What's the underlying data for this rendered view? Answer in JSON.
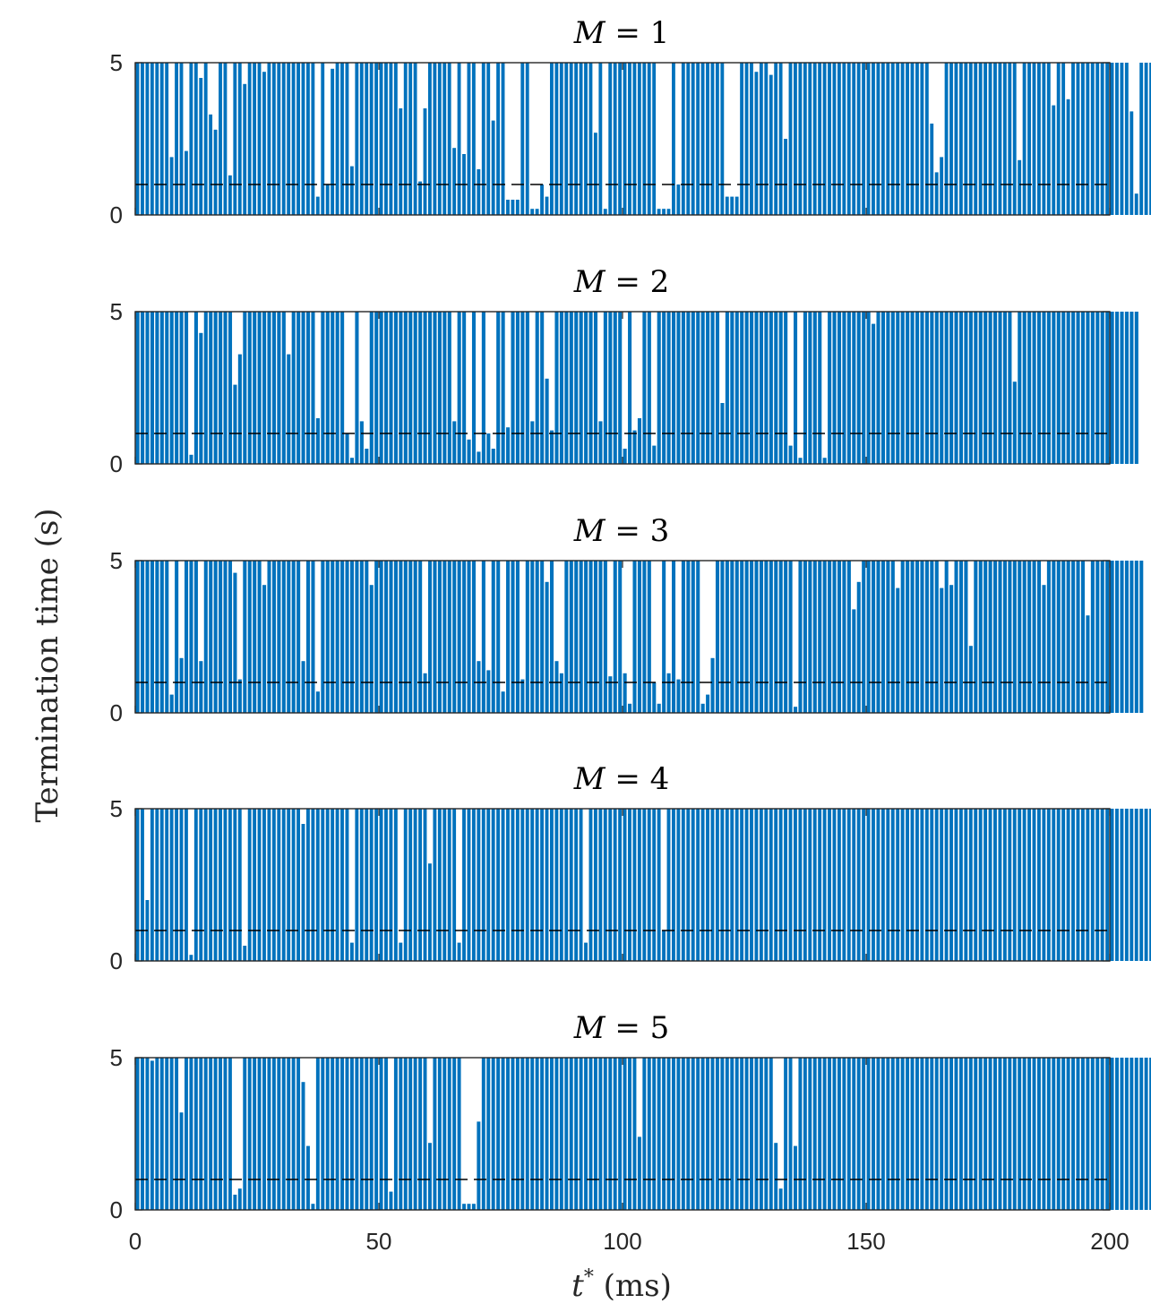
{
  "figure": {
    "ylabel": "Termination time (s)",
    "xlabel_var": "t",
    "xlabel_sup": "*",
    "xlabel_unit": " (ms)",
    "bar_color": "#0072BD",
    "threshold_color": "#000000"
  },
  "chart_data": [
    {
      "type": "bar",
      "title_var": "M",
      "title_value": "= 1",
      "x_start": 0,
      "x_step": 1,
      "xlim": [
        0,
        200
      ],
      "ylim": [
        0,
        5
      ],
      "yticks": [
        0,
        5
      ],
      "xticks": [],
      "threshold": 1,
      "values": [
        5,
        5,
        5,
        5,
        5,
        5,
        5,
        1.9,
        5,
        5,
        2.1,
        5,
        5,
        4.5,
        5,
        3.3,
        2.8,
        5,
        5,
        1.3,
        5,
        5,
        4.3,
        5,
        5,
        5,
        4.7,
        5,
        5,
        5,
        5,
        5,
        5,
        5,
        5,
        5,
        5,
        0.6,
        5,
        1,
        4.8,
        5,
        5,
        5,
        1.6,
        5,
        5,
        5,
        5,
        5,
        5,
        5,
        5,
        5,
        3.5,
        5,
        5,
        5,
        1.1,
        3.5,
        5,
        5,
        5,
        5,
        5,
        2.2,
        5,
        2,
        5,
        5,
        1.5,
        5,
        5,
        3.1,
        5,
        5,
        0.5,
        0.5,
        0.5,
        5,
        5,
        0.2,
        0.2,
        1,
        0.6,
        5,
        5,
        5,
        5,
        5,
        5,
        5,
        5,
        5,
        2.7,
        5,
        0.2,
        5,
        5,
        5,
        5,
        5,
        5,
        5,
        5,
        5,
        5,
        0.2,
        0.2,
        0.2,
        5,
        1,
        5,
        5,
        5,
        5,
        5,
        5,
        5,
        5,
        5,
        0.6,
        0.6,
        0.6,
        5,
        5,
        5,
        4.7,
        5,
        5,
        4.6,
        5,
        5,
        2.5,
        5,
        5,
        5,
        5,
        5,
        5,
        5,
        5,
        5,
        5,
        5,
        5,
        5,
        5,
        5,
        5,
        5,
        5,
        5,
        5,
        5,
        5,
        5,
        5,
        5,
        5,
        5,
        5,
        5,
        3,
        1.4,
        1.9,
        5,
        5,
        5,
        5,
        5,
        5,
        5,
        5,
        5,
        5,
        5,
        5,
        5,
        5,
        5,
        1.8,
        5,
        5,
        5,
        5,
        5,
        5,
        3.6,
        5,
        5,
        3.8,
        5,
        5,
        5,
        5,
        5,
        5,
        5,
        5,
        5,
        5,
        5,
        5,
        3.4,
        0.7,
        5,
        5,
        5,
        5,
        5,
        5,
        4.7,
        5,
        5
      ],
      "bar_value_labels": []
    },
    {
      "type": "bar",
      "title_var": "M",
      "title_value": "= 2",
      "x_start": 0,
      "x_step": 1,
      "xlim": [
        0,
        200
      ],
      "ylim": [
        0,
        5
      ],
      "yticks": [
        0,
        5
      ],
      "xticks": [],
      "threshold": 1,
      "values": [
        5,
        5,
        5,
        5,
        5,
        5,
        5,
        5,
        5,
        5,
        5,
        0.3,
        5,
        4.3,
        5,
        5,
        5,
        5,
        5,
        5,
        2.6,
        3.6,
        5,
        5,
        5,
        5,
        5,
        5,
        5,
        5,
        5,
        3.6,
        5,
        5,
        5,
        5,
        5,
        1.5,
        5,
        5,
        5,
        5,
        5,
        1,
        0.2,
        5,
        1.4,
        0.5,
        5,
        5,
        5,
        5,
        5,
        5,
        5,
        5,
        5,
        5,
        5,
        5,
        5,
        5,
        5,
        5,
        5,
        1.4,
        5,
        5,
        0.8,
        5,
        0.4,
        5,
        1,
        0.5,
        5,
        5,
        1.2,
        5,
        5,
        5,
        5,
        1.4,
        5,
        5,
        2.8,
        1.1,
        5,
        5,
        5,
        5,
        5,
        5,
        5,
        5,
        5,
        1.4,
        5,
        5,
        5,
        5,
        0.5,
        5,
        1.1,
        1.5,
        5,
        5,
        0.6,
        5,
        5,
        5,
        5,
        5,
        5,
        5,
        5,
        5,
        5,
        5,
        5,
        5,
        2,
        5,
        5,
        5,
        5,
        5,
        5,
        5,
        5,
        5,
        5,
        5,
        5,
        5,
        0.6,
        5,
        0.2,
        5,
        5,
        5,
        5,
        0.2,
        5,
        5,
        5,
        5,
        5,
        5,
        5,
        5,
        5,
        4.6,
        5,
        5,
        5,
        5,
        5,
        5,
        5,
        5,
        5,
        5,
        5,
        5,
        5,
        5,
        5,
        5,
        5,
        5,
        5,
        5,
        5,
        5,
        5,
        5,
        5,
        5,
        5,
        5,
        2.7,
        5,
        5,
        5,
        5,
        5,
        5,
        5,
        5,
        5,
        5,
        5,
        5,
        5,
        5,
        5,
        5,
        5,
        5,
        5,
        5,
        5,
        5,
        5,
        5,
        5
      ],
      "bar_value_labels": []
    },
    {
      "type": "bar",
      "title_var": "M",
      "title_value": "= 3",
      "x_start": 0,
      "x_step": 1,
      "xlim": [
        0,
        200
      ],
      "ylim": [
        0,
        5
      ],
      "yticks": [
        0,
        5
      ],
      "xticks": [],
      "threshold": 1,
      "values": [
        5,
        5,
        5,
        5,
        5,
        5,
        5,
        0.6,
        5,
        1.8,
        5,
        5,
        5,
        1.7,
        5,
        5,
        5,
        5,
        5,
        5,
        4.6,
        1.1,
        5,
        5,
        5,
        5,
        4.2,
        5,
        5,
        5,
        5,
        5,
        5,
        5,
        1.7,
        5,
        5,
        0.7,
        5,
        5,
        5,
        5,
        5,
        5,
        5,
        5,
        5,
        5,
        4.2,
        5,
        5,
        5,
        5,
        5,
        5,
        5,
        5,
        5,
        5,
        1.3,
        5,
        5,
        5,
        5,
        5,
        5,
        5,
        5,
        5,
        5,
        1.7,
        5,
        1.4,
        5,
        5,
        0.7,
        5,
        5,
        5,
        1.1,
        5,
        5,
        5,
        5,
        4.3,
        5,
        1.7,
        1.3,
        5,
        5,
        5,
        5,
        5,
        5,
        5,
        5,
        5,
        1.2,
        5,
        5,
        1.3,
        0.3,
        5,
        5,
        5,
        5,
        1,
        0.3,
        5,
        1.3,
        5,
        1.1,
        5,
        5,
        5,
        5,
        0.3,
        0.6,
        1.8,
        5,
        5,
        5,
        5,
        5,
        5,
        5,
        5,
        5,
        5,
        5,
        5,
        5,
        5,
        5,
        5,
        0.2,
        5,
        5,
        5,
        5,
        5,
        5,
        5,
        5,
        5,
        5,
        5,
        3.4,
        4.3,
        5,
        5,
        5,
        5,
        5,
        5,
        5,
        4.1,
        5,
        5,
        5,
        5,
        5,
        5,
        5,
        5,
        4.1,
        5,
        4.2,
        5,
        5,
        5,
        2.2,
        5,
        5,
        5,
        5,
        5,
        5,
        5,
        5,
        5,
        5,
        5,
        5,
        5,
        5,
        4.2,
        5,
        5,
        5,
        5,
        5,
        5,
        5,
        5,
        3.2,
        5,
        5,
        5,
        5,
        5,
        5,
        5,
        5,
        5,
        5,
        5
      ],
      "bar_value_labels": []
    },
    {
      "type": "bar",
      "title_var": "M",
      "title_value": "= 4",
      "x_start": 0,
      "x_step": 1,
      "xlim": [
        0,
        200
      ],
      "ylim": [
        0,
        5
      ],
      "yticks": [
        0,
        5
      ],
      "xticks": [],
      "threshold": 1,
      "values": [
        5,
        5,
        2,
        5,
        5,
        5,
        5,
        5,
        5,
        5,
        5,
        0.2,
        5,
        5,
        5,
        5,
        5,
        5,
        5,
        5,
        5,
        5,
        0.5,
        5,
        5,
        5,
        5,
        5,
        5,
        5,
        5,
        5,
        5,
        5,
        4.5,
        5,
        5,
        5,
        5,
        5,
        5,
        5,
        5,
        5,
        0.6,
        5,
        5,
        5,
        5,
        5,
        5,
        5,
        5,
        5,
        0.6,
        5,
        5,
        5,
        5,
        5,
        3.2,
        5,
        5,
        5,
        5,
        5,
        0.6,
        5,
        5,
        5,
        5,
        5,
        5,
        5,
        5,
        5,
        5,
        5,
        5,
        5,
        5,
        5,
        5,
        5,
        5,
        5,
        5,
        5,
        5,
        5,
        5,
        5,
        0.6,
        5,
        5,
        5,
        5,
        5,
        5,
        5,
        5,
        5,
        5,
        5,
        5,
        5,
        5,
        5,
        1,
        5,
        5,
        5,
        5,
        5,
        5,
        5,
        5,
        5,
        5,
        5,
        5,
        5,
        5,
        5,
        5,
        5,
        5,
        5,
        5,
        5,
        5,
        5,
        5,
        5,
        5,
        5,
        5,
        5,
        5,
        5,
        5,
        5,
        5,
        5,
        5,
        5,
        5,
        5,
        5,
        5,
        5,
        5,
        5,
        5,
        5,
        5,
        5,
        5,
        5,
        5,
        5,
        5,
        5,
        5,
        5,
        5,
        5,
        5,
        5,
        5,
        5,
        5,
        5,
        5,
        5,
        5,
        5,
        5,
        5,
        5,
        5,
        5,
        5,
        5,
        5,
        5,
        5,
        5,
        5,
        5,
        5,
        5,
        5,
        5,
        5,
        5,
        5,
        5,
        5,
        5,
        5,
        5,
        5,
        5,
        5,
        5,
        5,
        5,
        5,
        5,
        5,
        5,
        5,
        5
      ],
      "bar_value_labels": []
    },
    {
      "type": "bar",
      "title_var": "M",
      "title_value": "= 5",
      "x_start": 0,
      "x_step": 1,
      "xlim": [
        0,
        200
      ],
      "ylim": [
        0,
        5
      ],
      "yticks": [
        0,
        5
      ],
      "xticks": [
        0,
        50,
        100,
        150,
        200
      ],
      "threshold": 1,
      "values": [
        5,
        5,
        5,
        4.9,
        5,
        5,
        5,
        5,
        5,
        3.2,
        5,
        5,
        5,
        5,
        5,
        5,
        5,
        5,
        5,
        5,
        0.5,
        0.7,
        5,
        5,
        5,
        5,
        5,
        5,
        5,
        5,
        5,
        5,
        5,
        5,
        4.2,
        2.1,
        0.2,
        5,
        5,
        5,
        5,
        5,
        5,
        5,
        5,
        5,
        5,
        5,
        5,
        5,
        5,
        5,
        0.6,
        5,
        5,
        5,
        5,
        5,
        5,
        5,
        2.2,
        5,
        5,
        5,
        5,
        5,
        5,
        0.2,
        0.2,
        0.2,
        2.9,
        5,
        5,
        5,
        5,
        5,
        5,
        5,
        5,
        5,
        5,
        5,
        5,
        5,
        5,
        5,
        5,
        5,
        5,
        5,
        5,
        5,
        5,
        5,
        5,
        5,
        5,
        5,
        5,
        5,
        5,
        5,
        5,
        2.4,
        5,
        5,
        5,
        5,
        5,
        5,
        5,
        5,
        5,
        5,
        5,
        5,
        5,
        5,
        5,
        5,
        5,
        5,
        5,
        5,
        5,
        5,
        5,
        5,
        5,
        5,
        5,
        2.2,
        0.7,
        5,
        5,
        2.1,
        5,
        5,
        5,
        5,
        5,
        5,
        5,
        5,
        5,
        5,
        5,
        5,
        5,
        5,
        5,
        5,
        5,
        5,
        5,
        5,
        5,
        5,
        5,
        5,
        5,
        5,
        5,
        5,
        5,
        5,
        5,
        5,
        5,
        5,
        5,
        5,
        5,
        5,
        5,
        5,
        5,
        5,
        5,
        5,
        5,
        5,
        5,
        5,
        5,
        5,
        5,
        5,
        5,
        5,
        5,
        5,
        5,
        5,
        5,
        5,
        5,
        5,
        5,
        5,
        5,
        5,
        5,
        5,
        5,
        5,
        5,
        5,
        5,
        5,
        5,
        5
      ],
      "bar_value_labels": []
    }
  ]
}
